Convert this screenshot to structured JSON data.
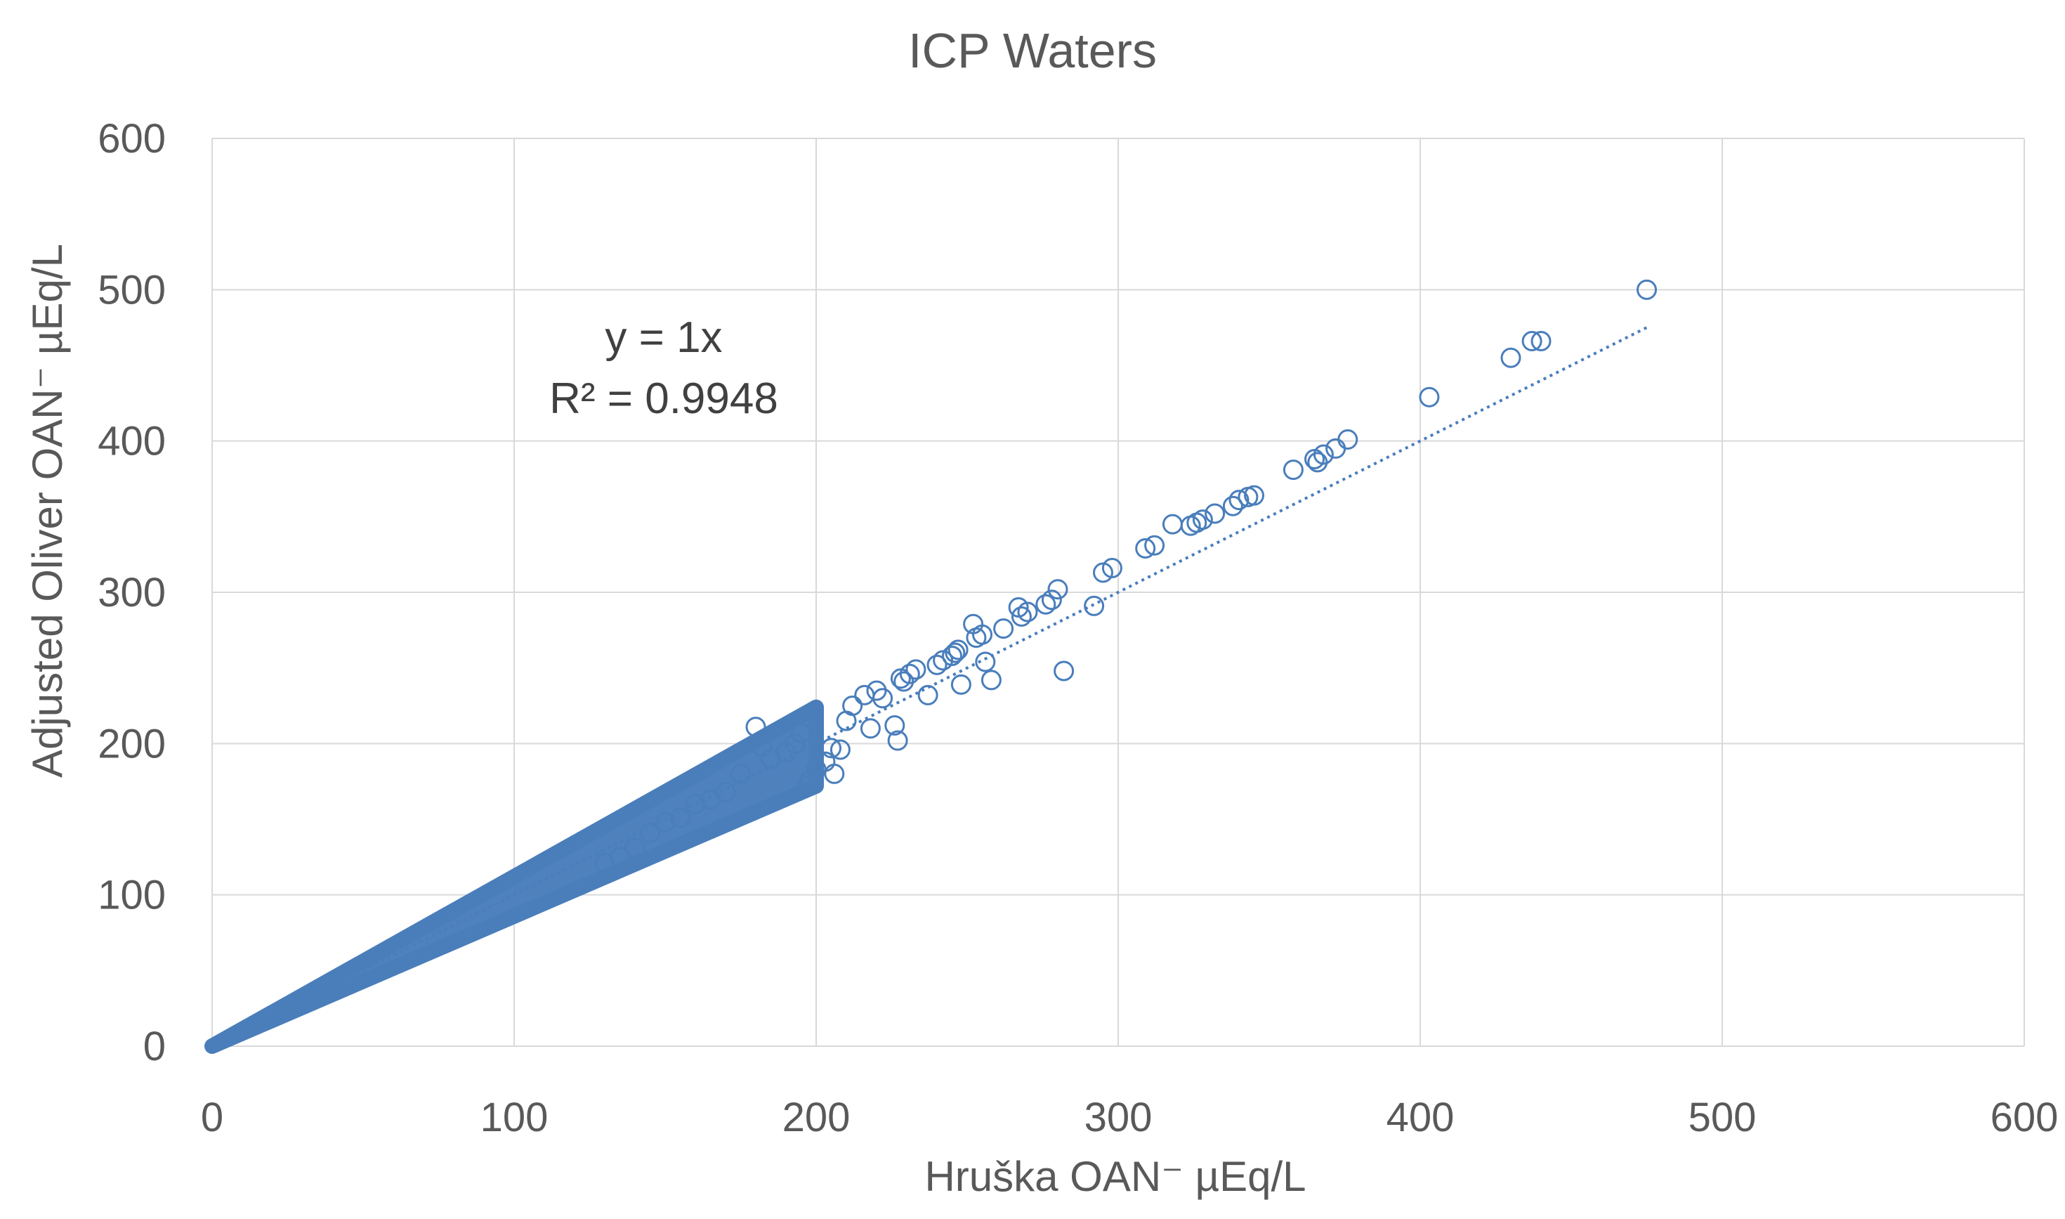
{
  "chart_data": {
    "type": "scatter",
    "title": "ICP Waters",
    "xlabel": "Hruška OAN⁻ µEq/L",
    "ylabel": "Adjusted Oliver OAN⁻  µEq/L",
    "xlim": [
      0,
      600
    ],
    "ylim": [
      0,
      600
    ],
    "xticks": [
      0,
      100,
      200,
      300,
      400,
      500,
      600
    ],
    "yticks": [
      0,
      100,
      200,
      300,
      400,
      500,
      600
    ],
    "x_tick_labels": [
      "0",
      "100",
      "200",
      "300",
      "400",
      "500",
      "600"
    ],
    "y_tick_labels": [
      "0",
      "100",
      "200",
      "300",
      "400",
      "500",
      "600"
    ],
    "grid": true,
    "legend": "none",
    "colors": {
      "marker": "#4a7ebb",
      "fill": "#4f81bd",
      "grid": "#d9d9d9",
      "text": "#595959"
    },
    "annotations": {
      "equation": "y = 1x",
      "r_squared": "R² = 0.9948"
    },
    "trendline": {
      "type": "linear",
      "slope": 1.0,
      "x_range": [
        0,
        475
      ],
      "style": "dotted"
    },
    "dense_band": {
      "x_range": [
        0,
        200
      ],
      "lower_slope": 0.86,
      "upper_slope": 1.12
    },
    "series": [
      {
        "x": [
          475,
          440,
          437,
          430,
          403,
          376,
          372,
          368,
          366,
          365,
          358,
          345,
          343,
          340,
          338,
          332,
          328,
          326,
          324,
          318,
          312,
          309,
          298,
          295,
          292,
          282,
          280,
          278,
          276,
          270,
          268,
          267,
          262,
          258,
          256,
          255,
          253,
          252,
          248,
          247,
          246,
          245,
          242,
          240,
          237,
          233,
          231,
          229,
          228,
          227,
          226,
          222,
          220,
          218,
          216,
          212,
          210,
          208,
          206,
          205,
          203,
          200,
          198,
          197,
          195,
          193,
          190,
          185,
          182,
          180,
          175,
          170,
          165,
          160,
          155,
          150,
          145,
          140,
          135,
          130
        ],
        "y": [
          500,
          466,
          466,
          455,
          429,
          401,
          395,
          391,
          386,
          388,
          381,
          364,
          363,
          361,
          357,
          352,
          348,
          346,
          344,
          345,
          331,
          329,
          316,
          313,
          291,
          248,
          302,
          295,
          292,
          287,
          284,
          290,
          276,
          242,
          254,
          272,
          270,
          279,
          239,
          262,
          260,
          258,
          255,
          252,
          232,
          249,
          246,
          241,
          243,
          202,
          212,
          230,
          235,
          210,
          232,
          225,
          215,
          196,
          180,
          197,
          188,
          183,
          176,
          172,
          207,
          200,
          194,
          190,
          198,
          211,
          180,
          168,
          163,
          160,
          151,
          148,
          141,
          131,
          125,
          121
        ]
      }
    ]
  }
}
